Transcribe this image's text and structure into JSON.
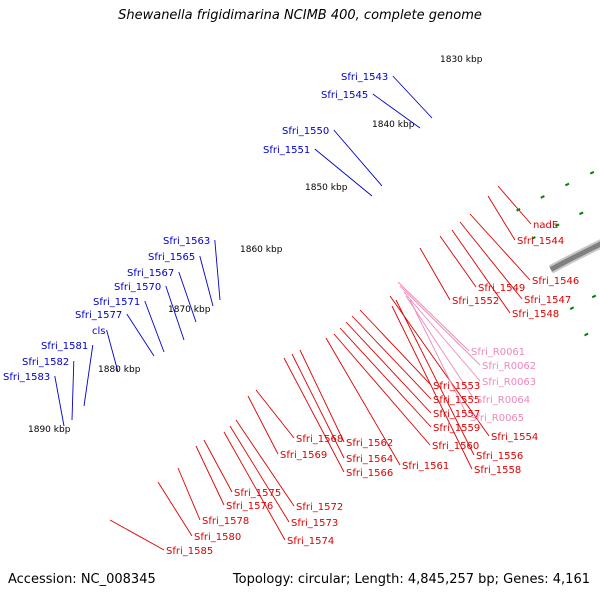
{
  "title": "Shewanella frigidimarina NCIMB 400, complete genome",
  "footer": {
    "accession": "Accession: NC_008345",
    "summary": "Topology: circular; Length: 4,845,257 bp; Genes: 4,161"
  },
  "ticks": [
    "1830 kbp",
    "1840 kbp",
    "1850 kbp",
    "1860 kbp",
    "1870 kbp",
    "1880 kbp",
    "1890 kbp"
  ],
  "labels_outer": [
    "Sfri_1543",
    "Sfri_1545",
    "Sfri_1550",
    "Sfri_1551",
    "Sfri_1563",
    "Sfri_1565",
    "Sfri_1567",
    "Sfri_1570",
    "Sfri_1571",
    "Sfri_1577",
    "cls",
    "Sfri_1581",
    "Sfri_1582",
    "Sfri_1583"
  ],
  "labels_inner": [
    "nadE",
    "Sfri_1544",
    "Sfri_1546",
    "Sfri_1547",
    "Sfri_1548",
    "Sfri_1549",
    "Sfri_1552",
    "Sfri_1553",
    "Sfri_1554",
    "Sfri_1555",
    "Sfri_1556",
    "Sfri_1557",
    "Sfri_1558",
    "Sfri_1559",
    "Sfri_1560",
    "Sfri_1561",
    "Sfri_1562",
    "Sfri_1564",
    "Sfri_1566",
    "Sfri_1568",
    "Sfri_1569",
    "Sfri_1572",
    "Sfri_1573",
    "Sfri_1574",
    "Sfri_1575",
    "Sfri_1576",
    "Sfri_1578",
    "Sfri_1580",
    "Sfri_1585"
  ],
  "labels_rna": [
    "Sfri_R0061",
    "Sfri_R0062",
    "Sfri_R0063",
    "Sfri_R0064",
    "Sfri_R0065"
  ],
  "colors": {
    "backbone": "#808080",
    "forward": "#0000ee",
    "reverse": "#ee0000",
    "rna": "#ff88cc",
    "tick": "#008000",
    "label_outer": "#0000cc",
    "label_inner": "#dd0000",
    "label_rna": "#ee88bb"
  }
}
